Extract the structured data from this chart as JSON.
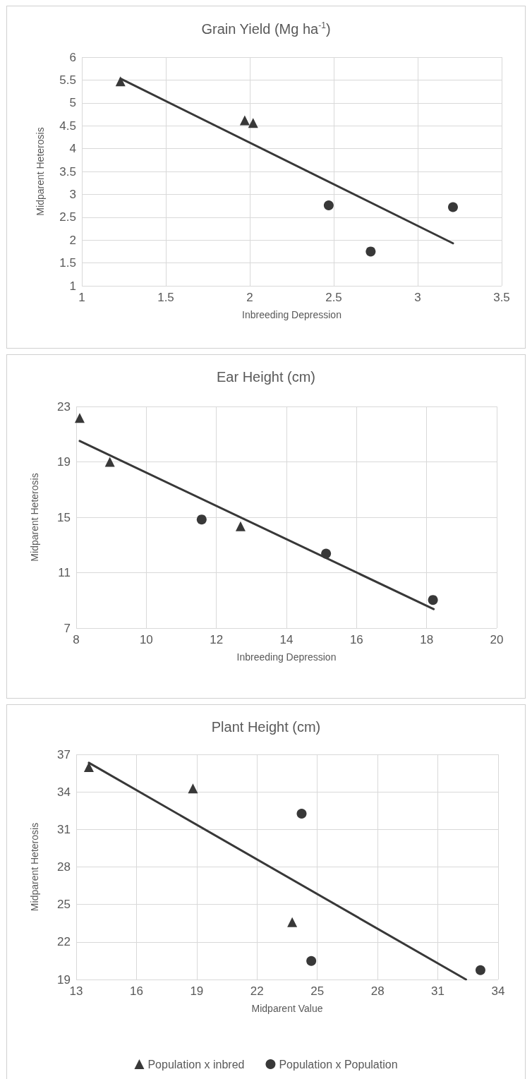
{
  "chart_data": [
    {
      "type": "scatter",
      "title": "Grain Yield (Mg ha$^{-1}$)",
      "xlabel": "Inbreeding Depression",
      "ylabel": "Midparent Heterosis",
      "xlim": [
        1,
        3.5
      ],
      "xticks": [
        1,
        1.5,
        2,
        2.5,
        3,
        3.5
      ],
      "ylim": [
        1,
        6
      ],
      "yticks": [
        1,
        1.5,
        2,
        2.5,
        3,
        3.5,
        4,
        4.5,
        5,
        5.5,
        6
      ],
      "grid": true,
      "legend": false,
      "series": [
        {
          "color": "#383838",
          "marker": "triangle",
          "x": [
            1.23,
            1.97,
            2.02
          ],
          "values": [
            5.47,
            4.62,
            4.56
          ]
        },
        {
          "color": "#383838",
          "marker": "circle",
          "x": [
            2.47,
            2.72,
            3.21
          ],
          "values": [
            2.76,
            1.75,
            2.72
          ]
        },
        {
          "type": "line",
          "color": "#383838",
          "marker": "none",
          "x": [
            1.23,
            3.21
          ],
          "values": [
            5.53,
            1.93
          ]
        }
      ]
    },
    {
      "type": "scatter",
      "title": "Ear Height (cm)",
      "xlabel": "Inbreeding Depression",
      "ylabel": "Midparent Heterosis",
      "xlim": [
        8,
        20
      ],
      "xticks": [
        8,
        10,
        12,
        14,
        16,
        18,
        20
      ],
      "ylim": [
        7,
        23
      ],
      "yticks": [
        7,
        11,
        15,
        19,
        23
      ],
      "grid": true,
      "legend": false,
      "series": [
        {
          "color": "#383838",
          "marker": "triangle",
          "x": [
            8.1,
            8.96,
            12.69
          ],
          "values": [
            22.17,
            19.0,
            14.35
          ]
        },
        {
          "color": "#383838",
          "marker": "circle",
          "x": [
            11.58,
            15.13,
            18.18
          ],
          "values": [
            14.84,
            12.37,
            9.03
          ]
        },
        {
          "type": "line",
          "color": "#383838",
          "marker": "none",
          "x": [
            8.1,
            18.2
          ],
          "values": [
            20.51,
            8.37
          ]
        }
      ]
    },
    {
      "type": "scatter",
      "title": "Plant Height (cm)",
      "xlabel": "Midparent Value",
      "ylabel": "Midparent Heterosis",
      "xlim": [
        13,
        34
      ],
      "xticks": [
        13,
        16,
        19,
        22,
        25,
        28,
        31,
        34
      ],
      "ylim": [
        19,
        37
      ],
      "yticks": [
        19,
        22,
        25,
        28,
        31,
        34,
        37
      ],
      "grid": true,
      "legend": "bottom",
      "series": [
        {
          "name": "Population x inbred",
          "color": "#383838",
          "marker": "triangle",
          "x": [
            13.63,
            18.81,
            23.75
          ],
          "values": [
            35.98,
            34.28,
            23.58
          ]
        },
        {
          "name": "Population x Population",
          "color": "#383838",
          "marker": "circle",
          "x": [
            24.22,
            24.7,
            33.12
          ],
          "values": [
            32.26,
            20.48,
            19.75
          ]
        },
        {
          "type": "line",
          "color": "#383838",
          "marker": "none",
          "x": [
            13.63,
            32.4
          ],
          "values": [
            36.33,
            19.0
          ]
        }
      ]
    }
  ]
}
